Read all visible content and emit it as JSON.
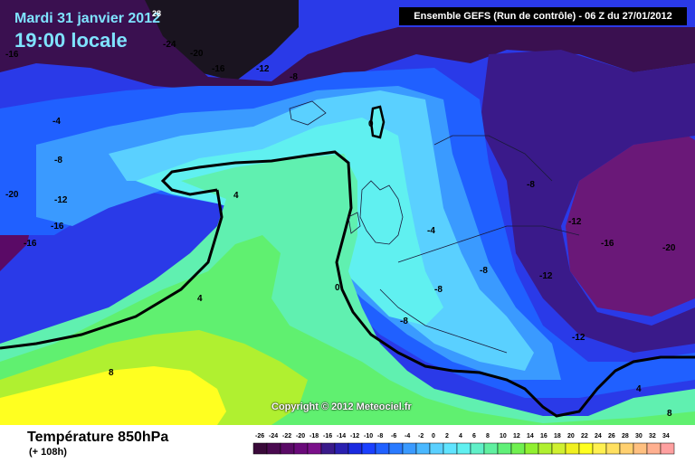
{
  "header": {
    "date": "Mardi 31 janvier 2012",
    "time": "19:00 locale",
    "corner_mark": "28"
  },
  "run_info": "Ensemble GEFS (Run de contrôle)  -  06 Z du 27/01/2012",
  "copyright": "Copyright © 2012 Meteociel.fr",
  "footer": {
    "title": "Température 850hPa",
    "lead": "(+ 108h)"
  },
  "colors": {
    "sea_black": "#1a1420",
    "deep_purple": "#3a1050",
    "purple": "#6a1878",
    "indigo": "#3a1a8a",
    "deep_blue": "#1a2ae0",
    "blue": "#2060ff",
    "mid_blue": "#3a9aff",
    "light_blue": "#5ad0ff",
    "cyan": "#60f0f0",
    "aqua_green": "#60f0b0",
    "green": "#60f070",
    "yellow_green": "#b0f030",
    "yellow": "#ffff20",
    "zero_line": "#000000"
  },
  "contour_labels": [
    {
      "text": "-16"
    },
    {
      "text": "-24"
    },
    {
      "text": "-20"
    },
    {
      "text": "-16"
    },
    {
      "text": "-12"
    },
    {
      "text": "-8"
    },
    {
      "text": "0"
    },
    {
      "text": "-4"
    },
    {
      "text": "-8"
    },
    {
      "text": "-20"
    },
    {
      "text": "-12"
    },
    {
      "text": "-16"
    },
    {
      "text": "-16"
    },
    {
      "text": "4"
    },
    {
      "text": "4"
    },
    {
      "text": "0"
    },
    {
      "text": "8"
    },
    {
      "text": "-4"
    },
    {
      "text": "-8"
    },
    {
      "text": "-8"
    },
    {
      "text": "-8"
    },
    {
      "text": "-8"
    },
    {
      "text": "-12"
    },
    {
      "text": "-12"
    },
    {
      "text": "-16"
    },
    {
      "text": "-20"
    },
    {
      "text": "-12"
    },
    {
      "text": "4"
    },
    {
      "text": "8"
    }
  ],
  "legend_scale": {
    "values": [
      "-26",
      "-24",
      "-22",
      "-20",
      "-18",
      "-16",
      "-14",
      "-12",
      "-10",
      "-8",
      "-6",
      "-4",
      "-2",
      "0",
      "2",
      "4",
      "6",
      "8",
      "10",
      "12",
      "14",
      "16",
      "18",
      "20",
      "22",
      "24",
      "26",
      "28",
      "30",
      "32",
      "34"
    ],
    "colors": [
      "#3a0a3a",
      "#4a0a50",
      "#5a0a66",
      "#6a0a7a",
      "#7a108a",
      "#3a1a8a",
      "#2a20b0",
      "#1a2ae0",
      "#1a40ff",
      "#2060ff",
      "#2a7aff",
      "#3a9aff",
      "#4ab8ff",
      "#5ad0ff",
      "#60e4ff",
      "#60f0f0",
      "#60f0c8",
      "#60f0a0",
      "#60f078",
      "#70f050",
      "#90f030",
      "#b0f030",
      "#d0f030",
      "#f0f020",
      "#ffff20",
      "#fff050",
      "#ffe060",
      "#ffd070",
      "#ffc080",
      "#ffb090",
      "#ffa0a0"
    ]
  }
}
